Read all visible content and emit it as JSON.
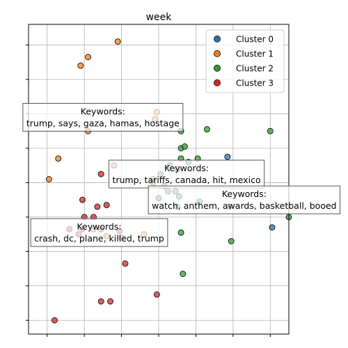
{
  "chart_data": {
    "type": "scatter",
    "title": "week",
    "xlabel": "",
    "ylabel": "",
    "xlim": [
      -0.5,
      6.5
    ],
    "ylim": [
      -0.4,
      8.6
    ],
    "xticks": [
      0,
      1,
      2,
      3,
      4,
      5,
      6
    ],
    "yticks": [
      0,
      1,
      2,
      3,
      4,
      5,
      6,
      7,
      8
    ],
    "grid": true,
    "legend_position": "top-right",
    "series": [
      {
        "name": "Cluster 0",
        "color": "#1f77b4",
        "points": [
          [
            4.85,
            4.75
          ],
          [
            6.05,
            2.7
          ]
        ]
      },
      {
        "name": "Cluster 1",
        "color": "#ff7f0e",
        "points": [
          [
            1.9,
            8.1
          ],
          [
            1.1,
            7.65
          ],
          [
            0.9,
            7.4
          ],
          [
            2.95,
            6.05
          ],
          [
            2.9,
            5.85
          ],
          [
            1.1,
            5.5
          ],
          [
            0.3,
            4.7
          ],
          [
            0.05,
            4.1
          ],
          [
            1.8,
            4.5
          ],
          [
            1.6,
            2.45
          ],
          [
            2.6,
            2.5
          ],
          [
            1.25,
            2.65
          ]
        ]
      },
      {
        "name": "Cluster 2",
        "color": "#2ca02c",
        "points": [
          [
            4.3,
            5.55
          ],
          [
            6.0,
            5.5
          ],
          [
            3.6,
            5.5
          ],
          [
            3.6,
            5.0
          ],
          [
            3.7,
            5.05
          ],
          [
            3.6,
            4.7
          ],
          [
            3.8,
            4.6
          ],
          [
            4.05,
            4.7
          ],
          [
            3.3,
            4.5
          ],
          [
            3.5,
            4.4
          ],
          [
            3.05,
            4.25
          ],
          [
            2.85,
            4.0
          ],
          [
            2.85,
            4.1
          ],
          [
            3.15,
            3.9
          ],
          [
            3.25,
            3.75
          ],
          [
            3.45,
            3.75
          ],
          [
            3.0,
            3.55
          ],
          [
            3.55,
            3.6
          ],
          [
            3.5,
            3.3
          ],
          [
            4.1,
            3.45
          ],
          [
            4.9,
            3.3
          ],
          [
            6.5,
            3.0
          ],
          [
            3.6,
            2.55
          ],
          [
            4.95,
            2.3
          ],
          [
            3.65,
            1.35
          ]
        ]
      },
      {
        "name": "Cluster 3",
        "color": "#d62728",
        "points": [
          [
            1.45,
            4.25
          ],
          [
            0.95,
            3.5
          ],
          [
            1.35,
            3.3
          ],
          [
            1.6,
            3.35
          ],
          [
            1.0,
            3.0
          ],
          [
            1.25,
            3.0
          ],
          [
            0.6,
            2.65
          ],
          [
            0.85,
            2.5
          ],
          [
            0.95,
            2.65
          ],
          [
            1.45,
            2.65
          ],
          [
            1.95,
            2.6
          ],
          [
            2.0,
            2.4
          ],
          [
            2.1,
            1.65
          ],
          [
            1.45,
            0.55
          ],
          [
            1.7,
            0.55
          ],
          [
            2.95,
            0.75
          ],
          [
            0.2,
            0.0
          ]
        ]
      }
    ],
    "annotations": [
      {
        "text": "Keywords:\ntrump, says, gaza, hamas, hostage",
        "x": 1.5,
        "y": 5.9
      },
      {
        "text": "Keywords:\ntrump, tariffs, canada, hit, mexico",
        "x": 3.75,
        "y": 4.25
      },
      {
        "text": "Keywords:\nwatch, anthem, awards, basketball, booed",
        "x": 5.3,
        "y": 3.5
      },
      {
        "text": "Keywords:\ncrash, dc, plane, killed, trump",
        "x": 1.4,
        "y": 2.55
      }
    ]
  }
}
